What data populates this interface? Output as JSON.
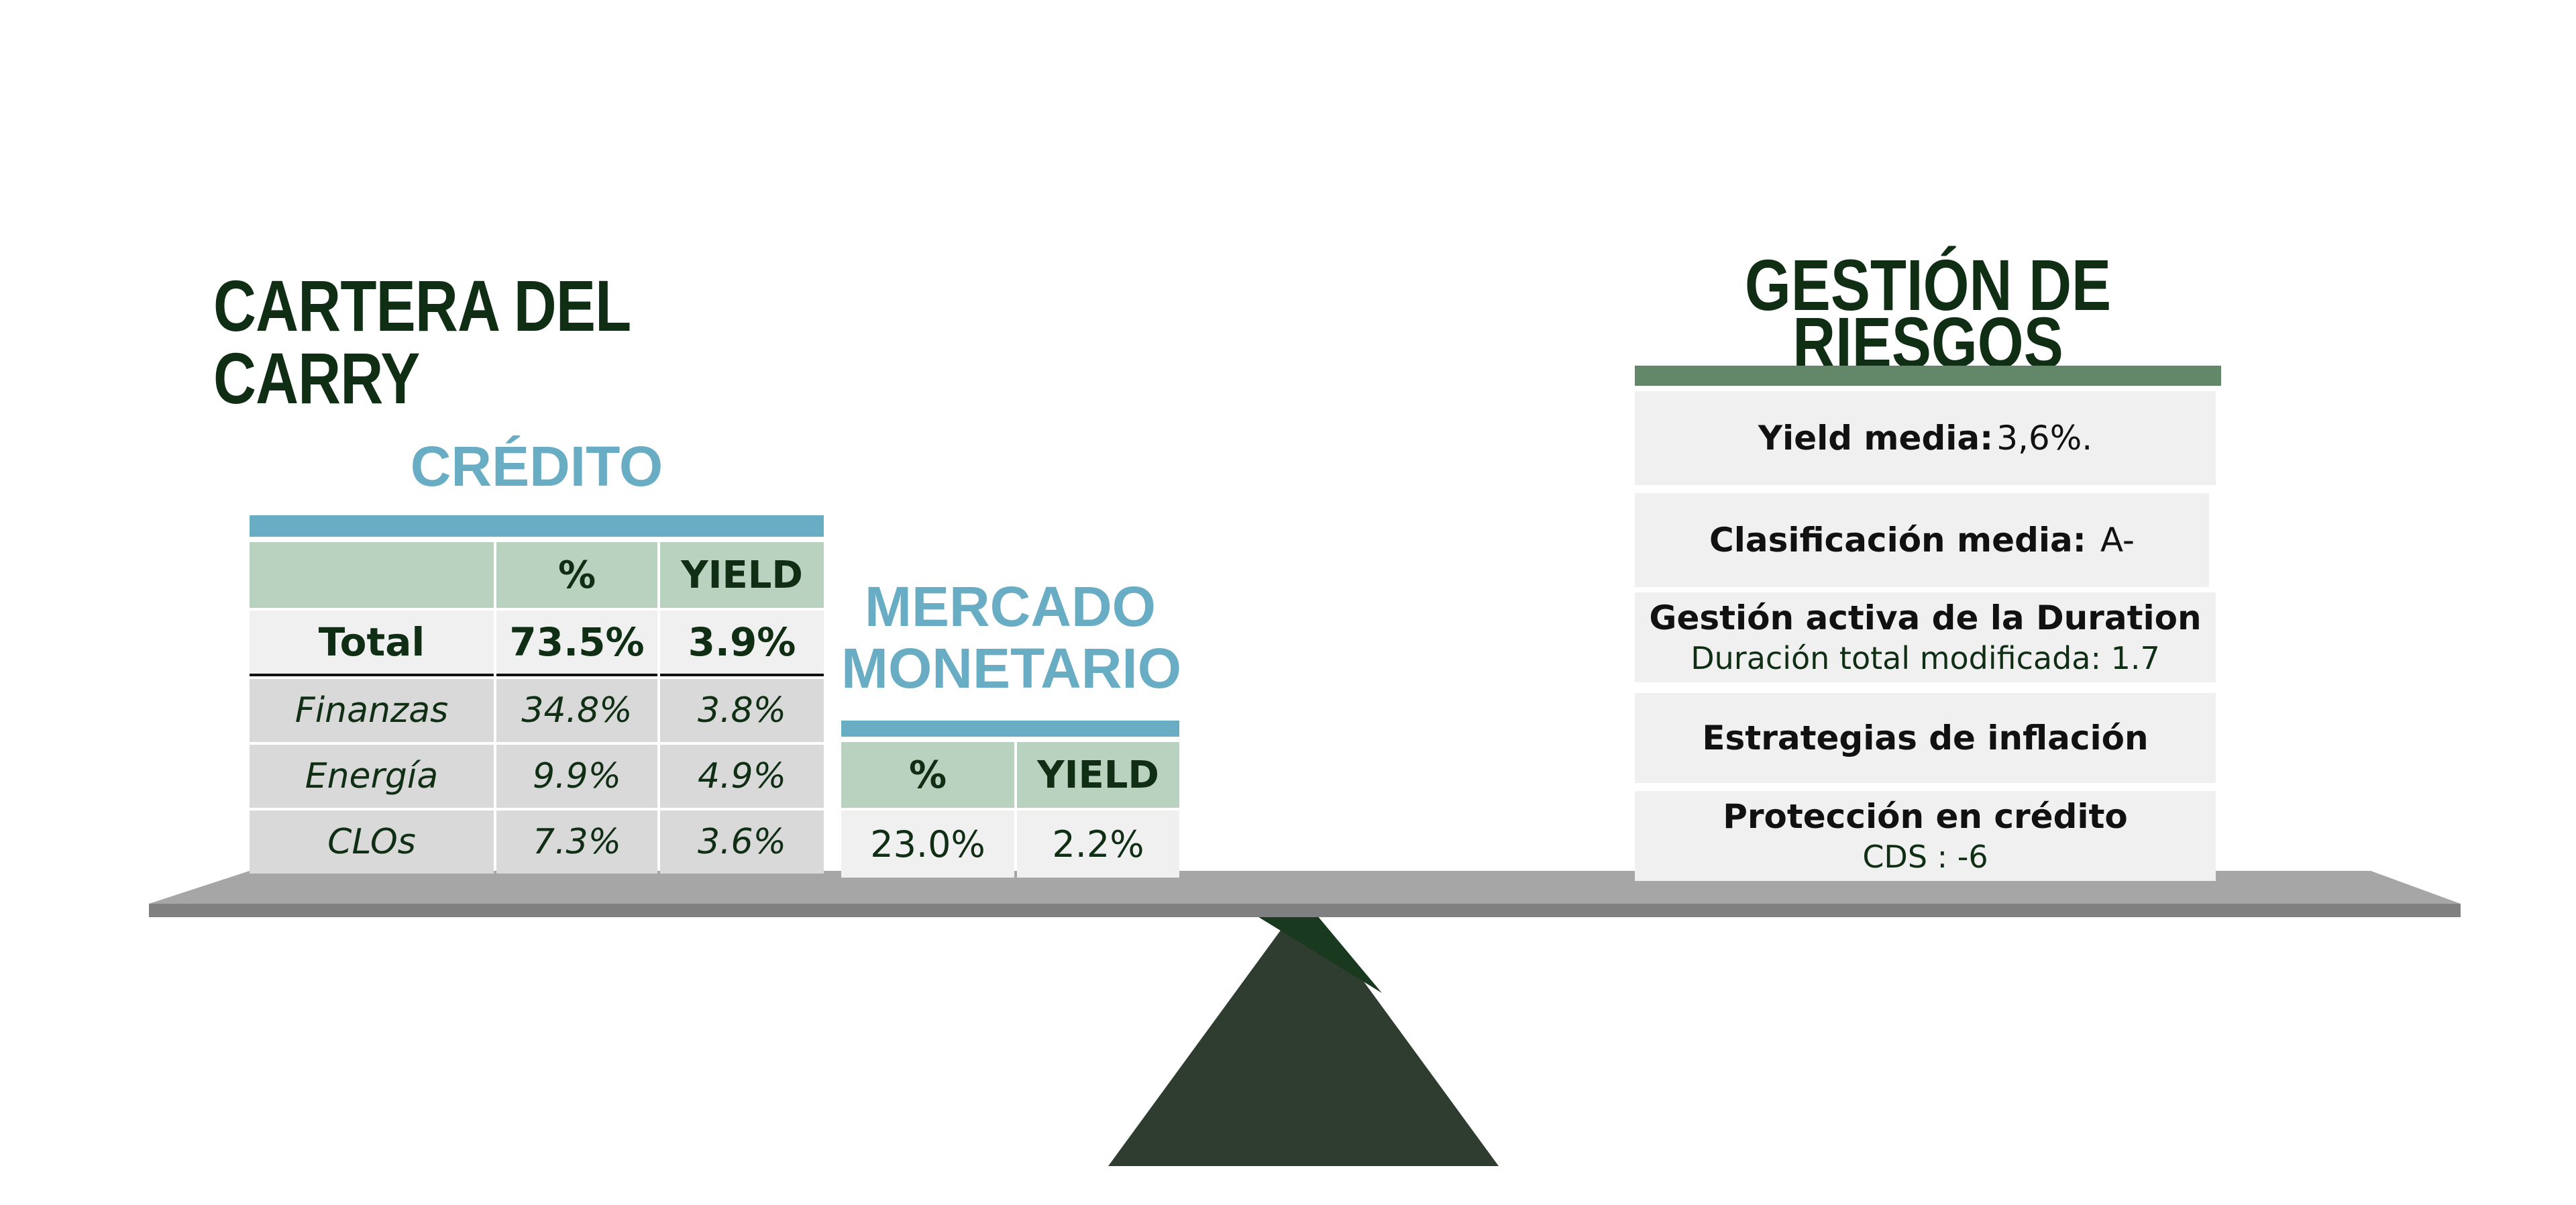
{
  "title": "CARTERA DEL CARRY",
  "credit": {
    "title": "CRÉDITO",
    "headers": [
      "",
      "%",
      "YIELD"
    ],
    "total": {
      "label": "Total",
      "pct": "73.5%",
      "yield": "3.9%"
    },
    "rows": [
      {
        "label": "Finanzas",
        "pct": "34.8%",
        "yield": "3.8%"
      },
      {
        "label": "Energía",
        "pct": "9.9%",
        "yield": "4.9%"
      },
      {
        "label": "CLOs",
        "pct": "7.3%",
        "yield": "3.6%"
      }
    ]
  },
  "money_market": {
    "title_line1": "MERCADO",
    "title_line2": "MONETARIO",
    "headers": [
      "%",
      "YIELD"
    ],
    "values": {
      "pct": "23.0%",
      "yield": "2.2%"
    }
  },
  "risk": {
    "title_line1": "GESTIÓN DE",
    "title_line2": "RIESGOS",
    "cards": [
      {
        "title": "Yield media:",
        "value": "3,6%."
      },
      {
        "title": "Clasificación media:",
        "value": "A-"
      },
      {
        "title": "Gestión activa de la Duration",
        "sub": "Duración total modificada: 1.7"
      },
      {
        "title": "Estrategias de inflación"
      },
      {
        "title": "Protección en crédito",
        "sub": "CDS : -6"
      }
    ]
  },
  "colors": {
    "dark_green": "#0f2e14",
    "accent_blue": "#68adc4",
    "header_green": "#b9d2bf",
    "risk_bar": "#628869",
    "beam": "#a6a6a6",
    "fulcrum": "#2f3d31"
  }
}
